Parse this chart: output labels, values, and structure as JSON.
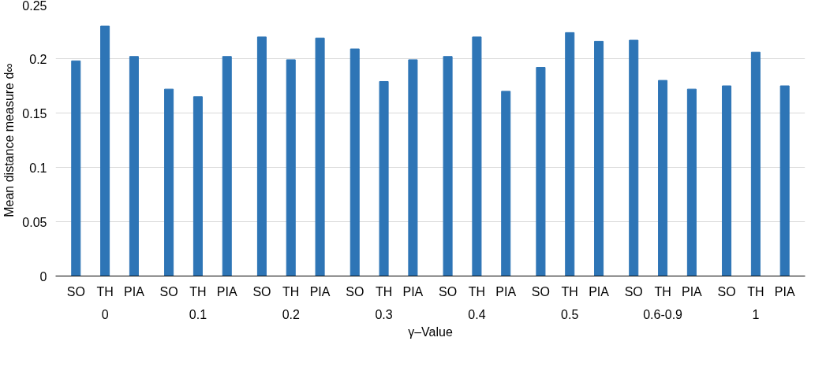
{
  "chart_data": {
    "type": "bar",
    "xlabel": "γ–Value",
    "ylabel": "Mean distance measure d∞",
    "categories": [
      "SO",
      "TH",
      "PIA",
      "SO",
      "TH",
      "PIA",
      "SO",
      "TH",
      "PIA",
      "SO",
      "TH",
      "PIA",
      "SO",
      "TH",
      "PIA",
      "SO",
      "TH",
      "PIA",
      "SO",
      "TH",
      "PIA",
      "SO",
      "TH",
      "PIA"
    ],
    "annotations": [
      "0",
      "0.1",
      "0.2",
      "0.3",
      "0.4",
      "0.5",
      "0.6-0.9",
      "1"
    ],
    "series": [
      {
        "color": "#2e75b6",
        "values": [
          0.198,
          0.23,
          0.202,
          0.172,
          0.165,
          0.202,
          0.22,
          0.199,
          0.219,
          0.209,
          0.179,
          0.199,
          0.202,
          0.22,
          0.17,
          0.192,
          0.224,
          0.216,
          0.217,
          0.18,
          0.172,
          0.175,
          0.206,
          0.175
        ]
      }
    ],
    "ylim": [
      0,
      0.25
    ],
    "yticks": [
      0,
      0.05,
      0.1,
      0.15,
      0.2,
      0.25
    ],
    "grid": "y"
  }
}
